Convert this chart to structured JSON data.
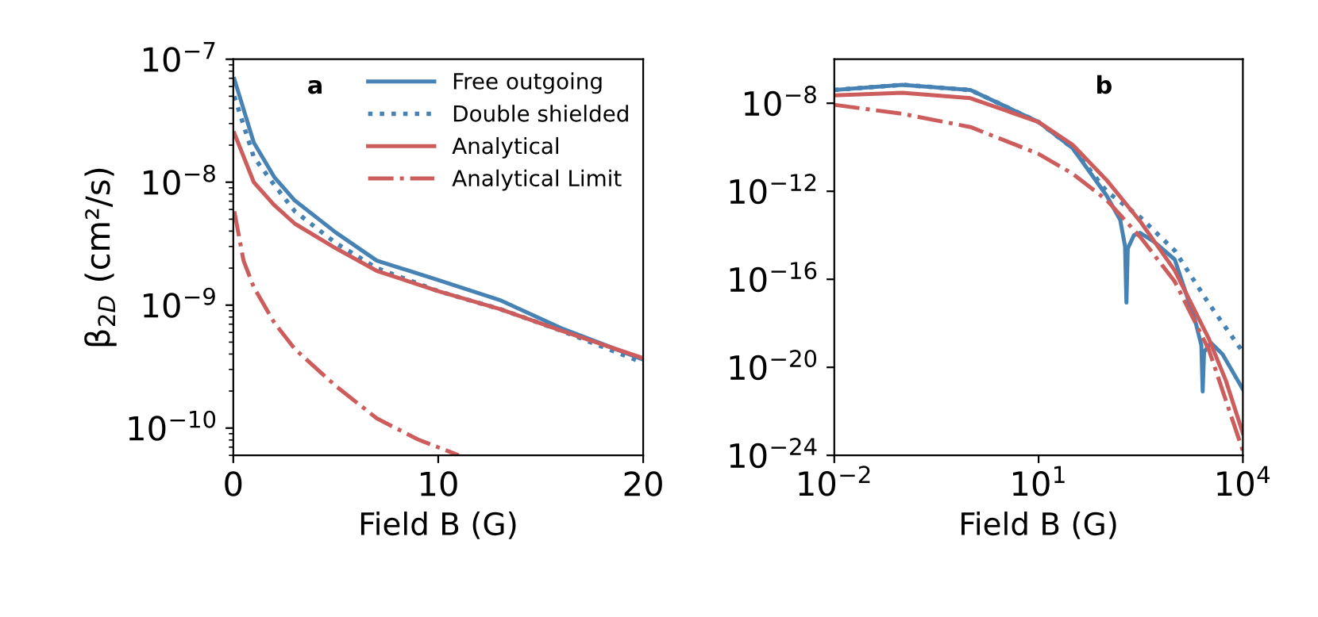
{
  "chart_data": [
    {
      "type": "line",
      "xlabel": "Field B (G)",
      "ylabel": "β$_{2D}$ (cm²/s)",
      "log": "y",
      "xlim": [
        0,
        20
      ],
      "xticks": [
        0,
        10,
        20
      ],
      "ylim": [
        6e-11,
        1e-07
      ],
      "yticks": [
        {
          "value": 1e-07,
          "label": "10$^{−7}$"
        },
        {
          "value": 1e-08,
          "label": "10$^{−8}$"
        },
        {
          "value": 1e-09,
          "label": "10$^{−9}$"
        },
        {
          "value": 1e-10,
          "label": "10$^{−10}$"
        }
      ],
      "grid": false,
      "legend": "top right",
      "annotations": [
        "a"
      ],
      "series": [
        {
          "name": "Free outgoing",
          "color": "#4682b4",
          "line_style": "solid",
          "x": [
            0.05,
            1,
            2,
            3,
            5,
            7,
            10,
            13,
            16,
            20
          ],
          "values": [
            6.9e-08,
            2.1e-08,
            1.1e-08,
            7.1e-09,
            3.9e-09,
            2.3e-09,
            1.6e-09,
            1.1e-09,
            6.5e-10,
            3.6e-10
          ]
        },
        {
          "name": "Double shielded",
          "color": "#4682b4",
          "line_style": "dotted",
          "x": [
            0.05,
            1,
            2,
            3,
            5,
            7,
            10,
            13,
            16,
            20
          ],
          "values": [
            5e-08,
            1.6e-08,
            9.5e-09,
            5.8e-09,
            3.2e-09,
            2e-09,
            1.3e-09,
            9.3e-10,
            6.2e-10,
            3.4e-10
          ]
        },
        {
          "name": "Analytical",
          "color": "#cd5c5c",
          "line_style": "solid",
          "x": [
            0.05,
            1,
            2,
            3,
            5,
            7,
            10,
            13,
            16,
            20
          ],
          "values": [
            2.5e-08,
            1e-08,
            6.5e-09,
            4.6e-09,
            2.9e-09,
            1.9e-09,
            1.3e-09,
            9.3e-10,
            6.2e-10,
            3.7e-10
          ]
        },
        {
          "name": "Analytical Limit",
          "color": "#cd5c5c",
          "line_style": "dashdot",
          "x": [
            0.05,
            0.5,
            1,
            2,
            3,
            5,
            7,
            9,
            11
          ],
          "values": [
            5.8e-09,
            2.3e-09,
            1.4e-09,
            7.2e-10,
            4.4e-10,
            2.2e-10,
            1.2e-10,
            8.1e-11,
            6e-11
          ]
        }
      ]
    },
    {
      "type": "line",
      "xlabel": "Field B (G)",
      "log": "xy",
      "xlim": [
        0.01,
        10000
      ],
      "ylim": [
        1e-24,
        1e-06
      ],
      "xticks": [
        {
          "value": 0.01,
          "label": "10$^{−2}$"
        },
        {
          "value": 10,
          "label": "10$^{1}$"
        },
        {
          "value": 10000,
          "label": "10$^{4}$"
        }
      ],
      "yticks": [
        {
          "value": 1e-08,
          "label": "10$^{−8}$"
        },
        {
          "value": 1e-12,
          "label": "10$^{−12}$"
        },
        {
          "value": 1e-16,
          "label": "10$^{−16}$"
        },
        {
          "value": 1e-20,
          "label": "10$^{−20}$"
        },
        {
          "value": 1e-24,
          "label": "10$^{−24}$"
        }
      ],
      "grid": false,
      "annotations": [
        "b"
      ],
      "series": [
        {
          "color": "#4682b4",
          "line_style": "solid",
          "x": [
            0.01,
            0.1,
            1,
            10,
            31.6,
            100,
            158,
            186,
            195,
            204,
            251,
            309,
            501,
            1000,
            1995,
            2455,
            2570,
            2692,
            3388,
            5012,
            10000
          ],
          "values": [
            4e-08,
            6.9e-08,
            4e-08,
            1.4e-09,
            9.1e-11,
            6.3e-13,
            5e-14,
            3.2e-15,
            8.7e-18,
            2.5e-15,
            1e-14,
            1.3e-14,
            5e-15,
            7.9e-16,
            1.3e-18,
            1e-19,
            7.9e-22,
            5e-20,
            1.3e-19,
            4e-20,
            1e-21
          ]
        },
        {
          "color": "#4682b4",
          "line_style": "dotted",
          "x": [
            0.01,
            0.1,
            1,
            10,
            31.6,
            100,
            316,
            1000,
            3162,
            10000
          ],
          "values": [
            4e-08,
            6.9e-08,
            4e-08,
            1.4e-09,
            9.1e-11,
            1e-12,
            6.3e-14,
            2e-15,
            7.9e-18,
            5e-20
          ]
        },
        {
          "color": "#cd5c5c",
          "line_style": "solid",
          "x": [
            0.01,
            0.1,
            1,
            10,
            31.6,
            100,
            316,
            1000,
            3162,
            5623,
            10000
          ],
          "values": [
            2.3e-08,
            3e-08,
            1.7e-08,
            1.4e-09,
            1.3e-10,
            3.2e-12,
            4e-14,
            2.5e-16,
            2e-19,
            2.5e-21,
            1e-23
          ]
        },
        {
          "color": "#cd5c5c",
          "line_style": "dashdot",
          "x": [
            0.01,
            0.1,
            1,
            10,
            31.6,
            100,
            316,
            1000,
            3162,
            10000
          ],
          "values": [
            8.5e-09,
            3.3e-09,
            8.3e-10,
            5e-11,
            6.3e-12,
            4e-13,
            7.9e-15,
            7.9e-17,
            6.3e-20,
            1.6e-24
          ]
        }
      ]
    }
  ]
}
